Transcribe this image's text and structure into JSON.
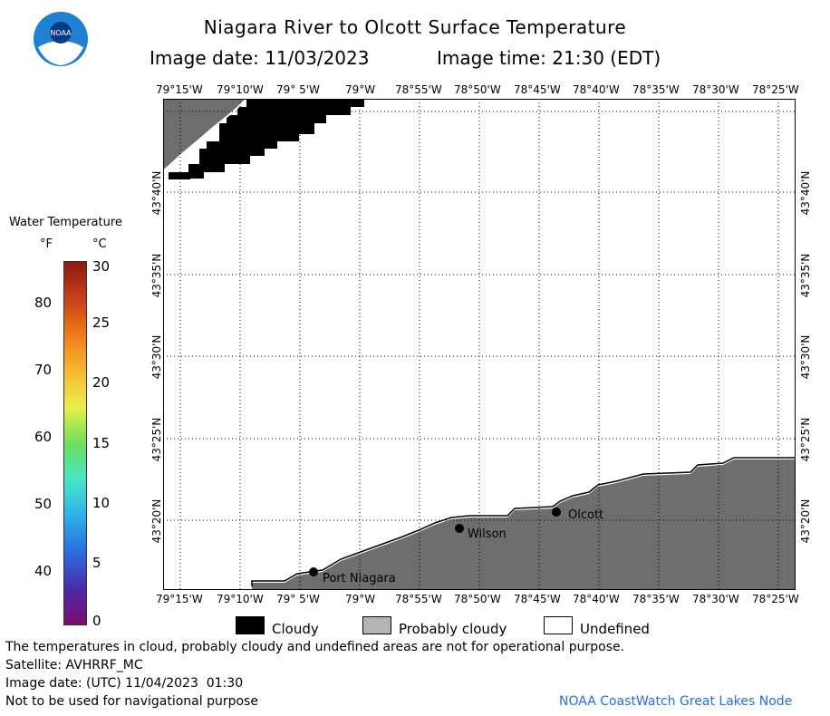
{
  "header": {
    "title": "Niagara River to Olcott Surface Temperature",
    "image_date_label": "Image date: 11/03/2023",
    "image_time_label": "Image time: 21:30 (EDT)",
    "logo_text": "NOAA"
  },
  "colorbar": {
    "title": "Water Temperature",
    "unit_f": "°F",
    "unit_c": "°C",
    "f_ticks": [
      "80",
      "70",
      "60",
      "50",
      "40"
    ],
    "c_ticks": [
      "30",
      "25",
      "20",
      "15",
      "10",
      "5",
      "0"
    ],
    "colors": [
      "#7a0c6e",
      "#4a2ca8",
      "#2a6ee0",
      "#2fb0e8",
      "#46e6c6",
      "#6ee05a",
      "#e8ee4a",
      "#f6b830",
      "#f07a18",
      "#c8401a",
      "#8a1a10"
    ]
  },
  "map": {
    "lon_labels": [
      "79°15'W",
      "79°10'W",
      "79° 5'W",
      "79°W",
      "78°55'W",
      "78°50'W",
      "78°45'W",
      "78°40'W",
      "78°35'W",
      "78°30'W",
      "78°25'W"
    ],
    "lat_labels": [
      "43°40'N",
      "43°35'N",
      "43°30'N",
      "43°25'N",
      "43°20'N"
    ],
    "places": [
      {
        "name": "Port Niagara"
      },
      {
        "name": "Wilson"
      },
      {
        "name": "Olcott"
      }
    ],
    "colors": {
      "land": "#6e6e6e",
      "cloud": "#000000",
      "water": "#ffffff"
    }
  },
  "legend": {
    "cloudy": "Cloudy",
    "probably_cloudy": "Probably cloudy",
    "undefined": "Undefined"
  },
  "footer": {
    "disclaimer": "The temperatures in cloud, probably cloudy and undefined areas are not for operational purpose.",
    "satellite": "Satellite: AVHRRF_MC",
    "image_date_utc": "Image date: (UTC) 11/04/2023  01:30",
    "nav_warning": "Not to be used for navigational purpose",
    "credit": "NOAA CoastWatch Great Lakes Node"
  }
}
